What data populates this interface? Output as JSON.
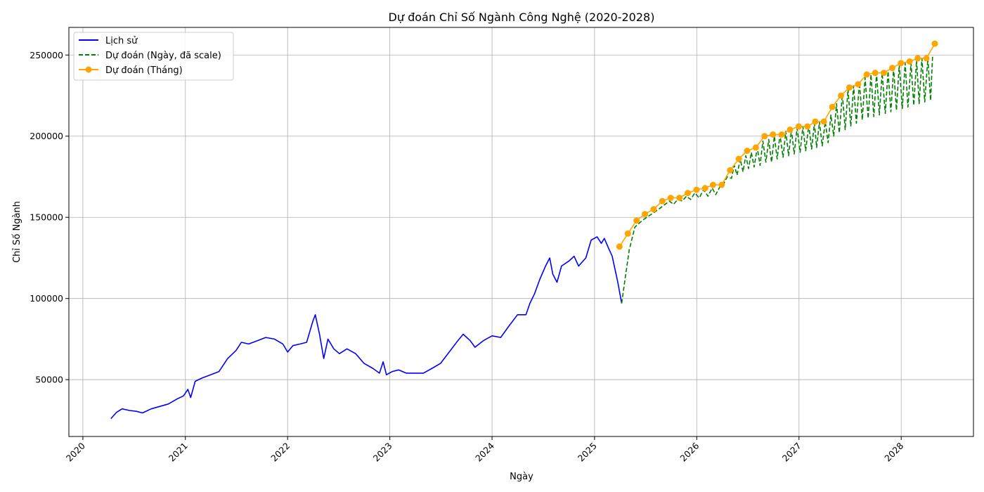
{
  "chart_data": {
    "type": "line",
    "title": "Dự đoán Chỉ Số Ngành Công Nghệ (2020-2028)",
    "xlabel": "Ngày",
    "ylabel": "Chỉ Số Ngành",
    "x_axis_type": "date",
    "xlim": [
      "2019-11-12",
      "2028-09-15"
    ],
    "ylim": [
      15000,
      267000
    ],
    "x_ticks": [
      "2020",
      "2021",
      "2022",
      "2023",
      "2024",
      "2025",
      "2026",
      "2027",
      "2028"
    ],
    "y_ticks": [
      50000,
      100000,
      150000,
      200000,
      250000
    ],
    "grid": true,
    "legend_position": "top-left",
    "colors": {
      "history": "#0000ff",
      "forecast_daily": "#008000",
      "forecast_monthly": "#ffa500"
    },
    "series": [
      {
        "name": "Lịch sử",
        "style": "solid",
        "points": [
          [
            "2020-04-10",
            26000
          ],
          [
            "2020-05-01",
            30000
          ],
          [
            "2020-05-20",
            32000
          ],
          [
            "2020-06-15",
            31000
          ],
          [
            "2020-07-10",
            30500
          ],
          [
            "2020-08-01",
            29500
          ],
          [
            "2020-09-01",
            32000
          ],
          [
            "2020-10-01",
            33500
          ],
          [
            "2020-11-01",
            35000
          ],
          [
            "2020-12-01",
            38000
          ],
          [
            "2020-12-25",
            40000
          ],
          [
            "2021-01-10",
            44000
          ],
          [
            "2021-01-20",
            39000
          ],
          [
            "2021-02-05",
            49000
          ],
          [
            "2021-03-01",
            51000
          ],
          [
            "2021-04-01",
            53000
          ],
          [
            "2021-05-01",
            55000
          ],
          [
            "2021-06-01",
            63000
          ],
          [
            "2021-07-01",
            68000
          ],
          [
            "2021-07-20",
            73000
          ],
          [
            "2021-08-15",
            72000
          ],
          [
            "2021-09-15",
            74000
          ],
          [
            "2021-10-15",
            76000
          ],
          [
            "2021-11-15",
            75000
          ],
          [
            "2021-12-15",
            72000
          ],
          [
            "2022-01-01",
            67000
          ],
          [
            "2022-01-20",
            71000
          ],
          [
            "2022-02-15",
            72000
          ],
          [
            "2022-03-10",
            73000
          ],
          [
            "2022-04-01",
            86000
          ],
          [
            "2022-04-10",
            90000
          ],
          [
            "2022-04-25",
            78000
          ],
          [
            "2022-05-10",
            63000
          ],
          [
            "2022-05-25",
            75000
          ],
          [
            "2022-06-15",
            69000
          ],
          [
            "2022-07-05",
            66000
          ],
          [
            "2022-08-01",
            69000
          ],
          [
            "2022-09-01",
            66000
          ],
          [
            "2022-10-01",
            60000
          ],
          [
            "2022-11-01",
            57000
          ],
          [
            "2022-11-25",
            54000
          ],
          [
            "2022-12-08",
            61000
          ],
          [
            "2022-12-20",
            53000
          ],
          [
            "2023-01-10",
            55000
          ],
          [
            "2023-02-01",
            56000
          ],
          [
            "2023-03-01",
            54000
          ],
          [
            "2023-04-01",
            54000
          ],
          [
            "2023-05-01",
            54000
          ],
          [
            "2023-06-01",
            57000
          ],
          [
            "2023-07-01",
            60000
          ],
          [
            "2023-08-01",
            67000
          ],
          [
            "2023-09-01",
            74000
          ],
          [
            "2023-09-20",
            78000
          ],
          [
            "2023-10-15",
            74000
          ],
          [
            "2023-11-01",
            70000
          ],
          [
            "2023-12-01",
            74000
          ],
          [
            "2024-01-01",
            77000
          ],
          [
            "2024-02-01",
            76000
          ],
          [
            "2024-03-01",
            83000
          ],
          [
            "2024-04-01",
            90000
          ],
          [
            "2024-05-01",
            90000
          ],
          [
            "2024-05-15",
            97000
          ],
          [
            "2024-06-01",
            103000
          ],
          [
            "2024-06-20",
            112000
          ],
          [
            "2024-07-10",
            120000
          ],
          [
            "2024-07-25",
            125000
          ],
          [
            "2024-08-05",
            115000
          ],
          [
            "2024-08-20",
            110000
          ],
          [
            "2024-09-05",
            120000
          ],
          [
            "2024-10-01",
            123000
          ],
          [
            "2024-10-20",
            126000
          ],
          [
            "2024-11-05",
            120000
          ],
          [
            "2024-12-01",
            125000
          ],
          [
            "2024-12-20",
            136000
          ],
          [
            "2025-01-10",
            138000
          ],
          [
            "2025-01-25",
            134000
          ],
          [
            "2025-02-05",
            137000
          ],
          [
            "2025-02-20",
            131000
          ],
          [
            "2025-03-05",
            126000
          ],
          [
            "2025-03-15",
            118000
          ],
          [
            "2025-03-25",
            110000
          ],
          [
            "2025-04-08",
            97000
          ]
        ]
      },
      {
        "name": "Dự đoán (Ngày, đã scale)",
        "style": "dashed",
        "points": [
          [
            "2025-04-08",
            97000
          ],
          [
            "2025-04-20",
            112000
          ],
          [
            "2025-05-05",
            130000
          ],
          [
            "2025-05-25",
            144000
          ],
          [
            "2025-06-20",
            148000
          ],
          [
            "2025-07-15",
            151000
          ],
          [
            "2025-08-10",
            154000
          ],
          [
            "2025-09-10",
            158000
          ],
          [
            "2025-09-25",
            160000
          ],
          [
            "2025-10-10",
            158000
          ],
          [
            "2025-10-25",
            161000
          ],
          [
            "2025-11-10",
            160000
          ],
          [
            "2025-11-25",
            163000
          ],
          [
            "2025-12-10",
            161000
          ],
          [
            "2025-12-25",
            165000
          ],
          [
            "2026-01-10",
            162000
          ],
          [
            "2026-01-25",
            167000
          ],
          [
            "2026-02-10",
            163000
          ],
          [
            "2026-02-25",
            168000
          ],
          [
            "2026-03-10",
            164000
          ],
          [
            "2026-03-25",
            169000
          ],
          [
            "2026-04-05",
            170000
          ],
          [
            "2026-04-20",
            175000
          ],
          [
            "2026-05-05",
            174000
          ],
          [
            "2026-05-15",
            182000
          ],
          [
            "2026-05-25",
            176000
          ],
          [
            "2026-06-05",
            186000
          ],
          [
            "2026-06-15",
            178000
          ],
          [
            "2026-06-25",
            188000
          ],
          [
            "2026-07-05",
            180000
          ],
          [
            "2026-07-15",
            190000
          ],
          [
            "2026-07-25",
            181000
          ],
          [
            "2026-08-05",
            193000
          ],
          [
            "2026-08-15",
            182000
          ],
          [
            "2026-08-25",
            197000
          ],
          [
            "2026-09-05",
            184000
          ],
          [
            "2026-09-15",
            198000
          ],
          [
            "2026-09-25",
            184000
          ],
          [
            "2026-10-05",
            200000
          ],
          [
            "2026-10-15",
            186000
          ],
          [
            "2026-10-25",
            201000
          ],
          [
            "2026-11-05",
            187000
          ],
          [
            "2026-11-15",
            203000
          ],
          [
            "2026-11-25",
            188000
          ],
          [
            "2026-12-05",
            204000
          ],
          [
            "2026-12-15",
            189000
          ],
          [
            "2026-12-25",
            205000
          ],
          [
            "2027-01-05",
            190000
          ],
          [
            "2027-01-15",
            206000
          ],
          [
            "2027-01-25",
            191000
          ],
          [
            "2027-02-05",
            207000
          ],
          [
            "2027-02-15",
            192000
          ],
          [
            "2027-02-25",
            208000
          ],
          [
            "2027-03-05",
            193000
          ],
          [
            "2027-03-15",
            209000
          ],
          [
            "2027-03-25",
            194000
          ],
          [
            "2027-04-05",
            209000
          ],
          [
            "2027-04-15",
            196000
          ],
          [
            "2027-04-25",
            213000
          ],
          [
            "2027-05-05",
            200000
          ],
          [
            "2027-05-15",
            220000
          ],
          [
            "2027-05-25",
            202000
          ],
          [
            "2027-06-05",
            226000
          ],
          [
            "2027-06-15",
            204000
          ],
          [
            "2027-06-25",
            229000
          ],
          [
            "2027-07-05",
            206000
          ],
          [
            "2027-07-15",
            231000
          ],
          [
            "2027-07-25",
            208000
          ],
          [
            "2027-08-05",
            233000
          ],
          [
            "2027-08-15",
            210000
          ],
          [
            "2027-08-25",
            236000
          ],
          [
            "2027-09-05",
            211000
          ],
          [
            "2027-09-15",
            238000
          ],
          [
            "2027-09-25",
            212000
          ],
          [
            "2027-10-05",
            239000
          ],
          [
            "2027-10-15",
            213000
          ],
          [
            "2027-10-25",
            239000
          ],
          [
            "2027-11-05",
            214000
          ],
          [
            "2027-11-15",
            240000
          ],
          [
            "2027-11-25",
            215000
          ],
          [
            "2027-12-05",
            242000
          ],
          [
            "2027-12-15",
            216000
          ],
          [
            "2027-12-25",
            244000
          ],
          [
            "2028-01-05",
            217000
          ],
          [
            "2028-01-15",
            245000
          ],
          [
            "2028-01-25",
            218000
          ],
          [
            "2028-02-05",
            245000
          ],
          [
            "2028-02-15",
            219000
          ],
          [
            "2028-02-25",
            247000
          ],
          [
            "2028-03-05",
            220000
          ],
          [
            "2028-03-15",
            248000
          ],
          [
            "2028-03-25",
            221000
          ],
          [
            "2028-04-05",
            248000
          ],
          [
            "2028-04-15",
            222000
          ],
          [
            "2028-04-22",
            249000
          ]
        ]
      },
      {
        "name": "Dự đoán (Tháng)",
        "style": "solid-markers",
        "points": [
          [
            "2025-03-31",
            132000
          ],
          [
            "2025-04-30",
            140000
          ],
          [
            "2025-05-31",
            148000
          ],
          [
            "2025-06-30",
            152000
          ],
          [
            "2025-07-31",
            155000
          ],
          [
            "2025-08-31",
            160000
          ],
          [
            "2025-09-30",
            162000
          ],
          [
            "2025-10-31",
            162000
          ],
          [
            "2025-11-30",
            165000
          ],
          [
            "2025-12-31",
            167000
          ],
          [
            "2026-01-31",
            168000
          ],
          [
            "2026-02-28",
            170000
          ],
          [
            "2026-03-31",
            170000
          ],
          [
            "2026-04-30",
            179000
          ],
          [
            "2026-05-31",
            186000
          ],
          [
            "2026-06-30",
            191000
          ],
          [
            "2026-07-31",
            193000
          ],
          [
            "2026-08-31",
            200000
          ],
          [
            "2026-09-30",
            201000
          ],
          [
            "2026-10-31",
            201000
          ],
          [
            "2026-11-30",
            204000
          ],
          [
            "2026-12-31",
            206000
          ],
          [
            "2027-01-31",
            206000
          ],
          [
            "2027-02-28",
            209000
          ],
          [
            "2027-03-31",
            209000
          ],
          [
            "2027-04-30",
            218000
          ],
          [
            "2027-05-31",
            225000
          ],
          [
            "2027-06-30",
            230000
          ],
          [
            "2027-07-31",
            232000
          ],
          [
            "2027-08-31",
            238000
          ],
          [
            "2027-09-30",
            239000
          ],
          [
            "2027-10-31",
            239000
          ],
          [
            "2027-11-30",
            242000
          ],
          [
            "2027-12-31",
            245000
          ],
          [
            "2028-01-31",
            246000
          ],
          [
            "2028-02-29",
            248000
          ],
          [
            "2028-03-31",
            248000
          ],
          [
            "2028-04-30",
            257000
          ]
        ]
      }
    ]
  }
}
